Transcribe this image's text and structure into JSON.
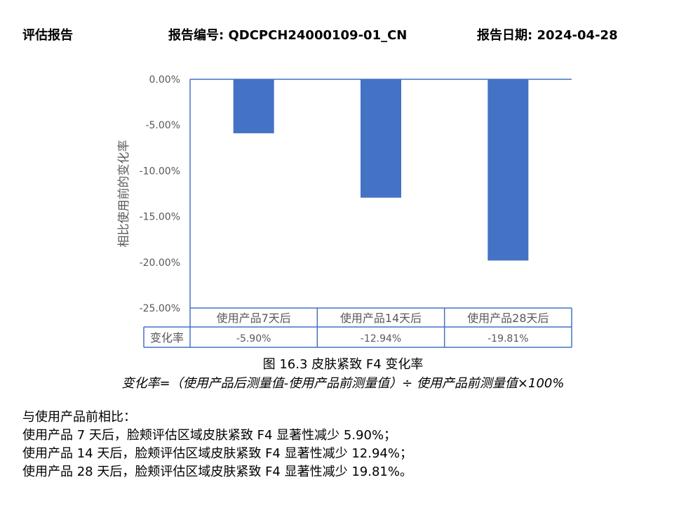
{
  "header": {
    "left": "评估报告",
    "report_no": "报告编号: QDCPCH24000109-01_CN",
    "report_date": "报告日期: 2024-04-28"
  },
  "chart_data": {
    "type": "bar",
    "categories": [
      "使用产品7天后",
      "使用产品14天后",
      "使用产品28天后"
    ],
    "values": [
      -5.9,
      -12.94,
      -19.81
    ],
    "value_labels": [
      "-5.90%",
      "-12.94%",
      "-19.81%"
    ],
    "ylabel": "相比使用前的变化率",
    "ylim": [
      -25,
      0
    ],
    "yticks": [
      "0.00%",
      "-5.00%",
      "-10.00%",
      "-15.00%",
      "-20.00%",
      "-25.00%"
    ],
    "table_row_label": "变化率",
    "bar_color": "#4472C4",
    "grid": false,
    "legend": "none"
  },
  "captions": {
    "figure": "图 16.3 皮肤紧致 F4 变化率",
    "formula": "变化率=（使用产品后测量值-使用产品前测量值）÷ 使用产品前测量值×100%"
  },
  "body": {
    "lines": [
      "与使用产品前相比：",
      "使用产品 7 天后，脸颊评估区域皮肤紧致 F4 显著性减少 5.90%；",
      "使用产品 14 天后，脸颊评估区域皮肤紧致 F4 显著性减少 12.94%；",
      "使用产品 28 天后，脸颊评估区域皮肤紧致 F4 显著性减少 19.81%。"
    ]
  }
}
